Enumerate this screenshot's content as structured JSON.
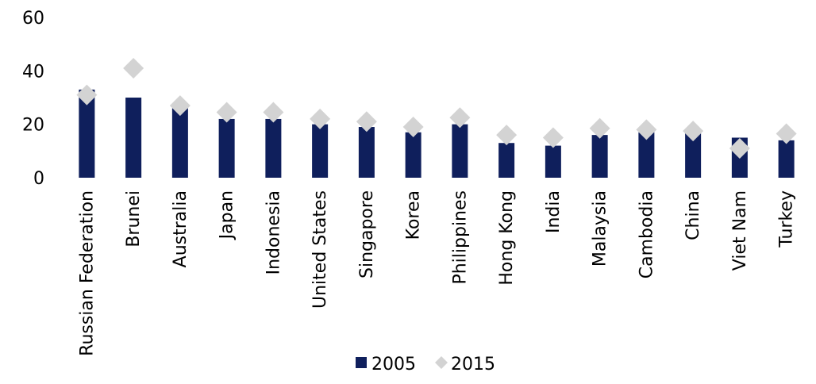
{
  "chart_data": {
    "type": "bar",
    "title": "",
    "xlabel": "",
    "ylabel": "",
    "ylim": [
      0,
      60
    ],
    "yticks": [
      0,
      20,
      40,
      60
    ],
    "grid": false,
    "legend_position": "bottom",
    "categories": [
      "Russian Federation",
      "Brunei",
      "Australia",
      "Japan",
      "Indonesia",
      "United States",
      "Singapore",
      "Korea",
      "Philippines",
      "Hong Kong",
      "India",
      "Malaysia",
      "Cambodia",
      "China",
      "Viet Nam",
      "Turkey"
    ],
    "series": [
      {
        "name": "2005",
        "kind": "bar",
        "marker": "rect",
        "color": "#0f1f5c",
        "values": [
          33,
          30,
          26,
          22,
          22,
          20,
          19,
          17,
          20,
          13,
          12,
          16,
          17,
          17,
          15,
          14
        ]
      },
      {
        "name": "2015",
        "kind": "marker",
        "marker": "diamond",
        "color": "#d3d3d3",
        "values": [
          31,
          41,
          27,
          24.5,
          24.5,
          22,
          21,
          19,
          22.5,
          16,
          15,
          18.5,
          18,
          17.5,
          11,
          16.5
        ]
      }
    ]
  }
}
